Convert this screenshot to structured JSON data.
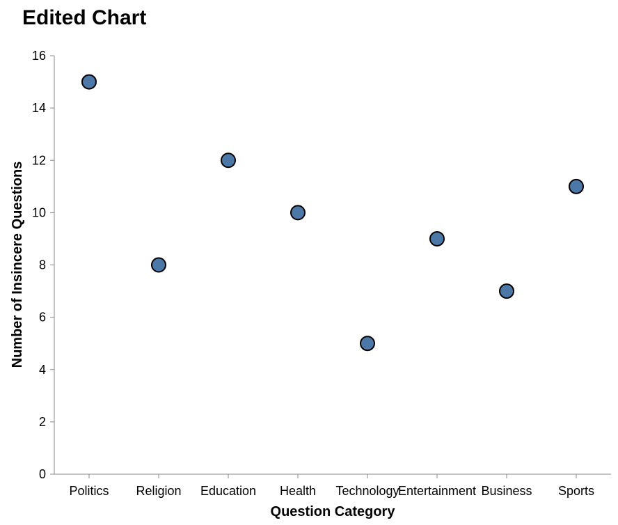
{
  "chart_data": {
    "type": "scatter",
    "title": "Edited Chart",
    "xlabel": "Question Category",
    "ylabel": "Number of Insincere Questions",
    "categories": [
      "Politics",
      "Religion",
      "Education",
      "Health",
      "Technology",
      "Entertainment",
      "Business",
      "Sports"
    ],
    "values": [
      15,
      8,
      12,
      10,
      5,
      9,
      7,
      11
    ],
    "ylim": [
      0,
      16
    ],
    "yticks": [
      0,
      2,
      4,
      6,
      8,
      10,
      12,
      14,
      16
    ],
    "grid": false,
    "point_color": "#4c78a8",
    "point_stroke": "#000000"
  }
}
